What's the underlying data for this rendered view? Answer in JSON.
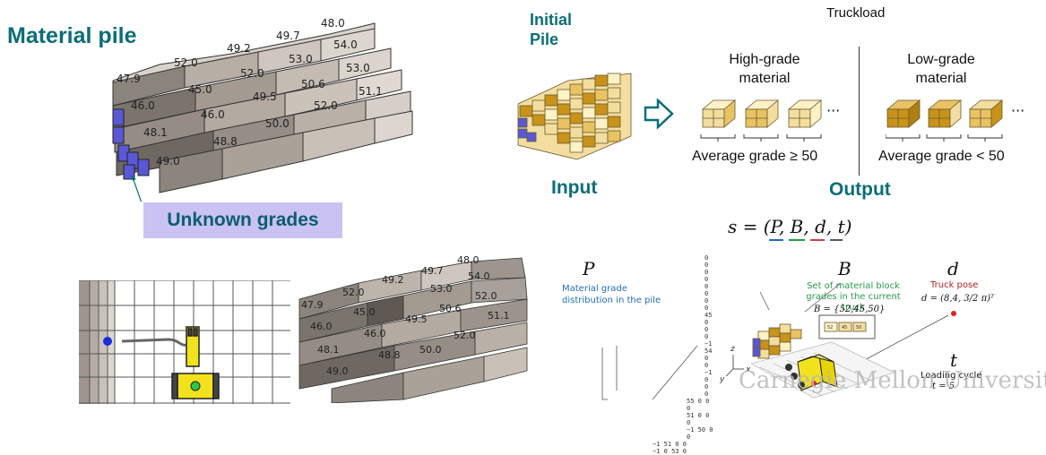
{
  "material_pile": {
    "title": "Material pile",
    "unknown_label": "Unknown grades",
    "grades": [
      "48.0",
      "49.7",
      "54.0",
      "49.2",
      "53.0",
      "53.0",
      "52.0",
      "52.0",
      "50.6",
      "47.9",
      "45.0",
      "49.5",
      "51.1",
      "46.0",
      "46.0",
      "52.0",
      "50.0",
      "48.1",
      "48.8",
      "49.0"
    ]
  },
  "pipeline": {
    "initial_pile": "Initial Pile",
    "input_label": "Input",
    "output_label": "Output",
    "truckload_label": "Truckload",
    "high_grade": "High-grade material",
    "low_grade": "Low-grade material",
    "avg_high": "Average grade ≥ 50",
    "avg_low": "Average grade < 50",
    "ellipsis": "···"
  },
  "state": {
    "formula": "s = (P, B, d, t)",
    "P_symbol": "P",
    "P_caption": "Material grade distribution in the pile",
    "B_symbol": "B",
    "B_caption": "Set of material block grades in the current truck",
    "B_value": "B = {52,45,50}",
    "d_symbol": "d",
    "d_caption": "Truck pose",
    "d_value": "d = (8,4, 3/2 π)ᵀ",
    "t_symbol": "t",
    "t_caption": "Loading cycle",
    "t_value": "t = 5",
    "axis_x": "x",
    "axis_y": "y",
    "axis_z": "z",
    "matrix_rows": [
      "0 0 0 0",
      "0 0 0 0",
      "45 0 0 0",
      "−1 54 0 0",
      "−1 0 0 0",
      "55 0 0 0",
      "51 0 0 0",
      "−1 50 0 0",
      "−1 51 0 0",
      "−1 0 53 0"
    ],
    "block_labels": [
      "52",
      "45",
      "50"
    ]
  },
  "bottom_pile": {
    "grades": [
      "48.0",
      "49.7",
      "54.0",
      "49.2",
      "53.0",
      "52.0",
      "52.0",
      "50.6",
      "47.9",
      "45.0",
      "49.5",
      "51.1",
      "46.0",
      "46.0",
      "52.0",
      "50.0",
      "48.1",
      "48.8",
      "49.0"
    ]
  },
  "watermark": "Carnegie Mellon University",
  "colors": {
    "teal": "#0b6e78",
    "unknown_bg": "#c9c2f2",
    "gold": "#c8921b",
    "blue_block": "#5a58d6",
    "truck_yellow": "#f2e21b"
  }
}
